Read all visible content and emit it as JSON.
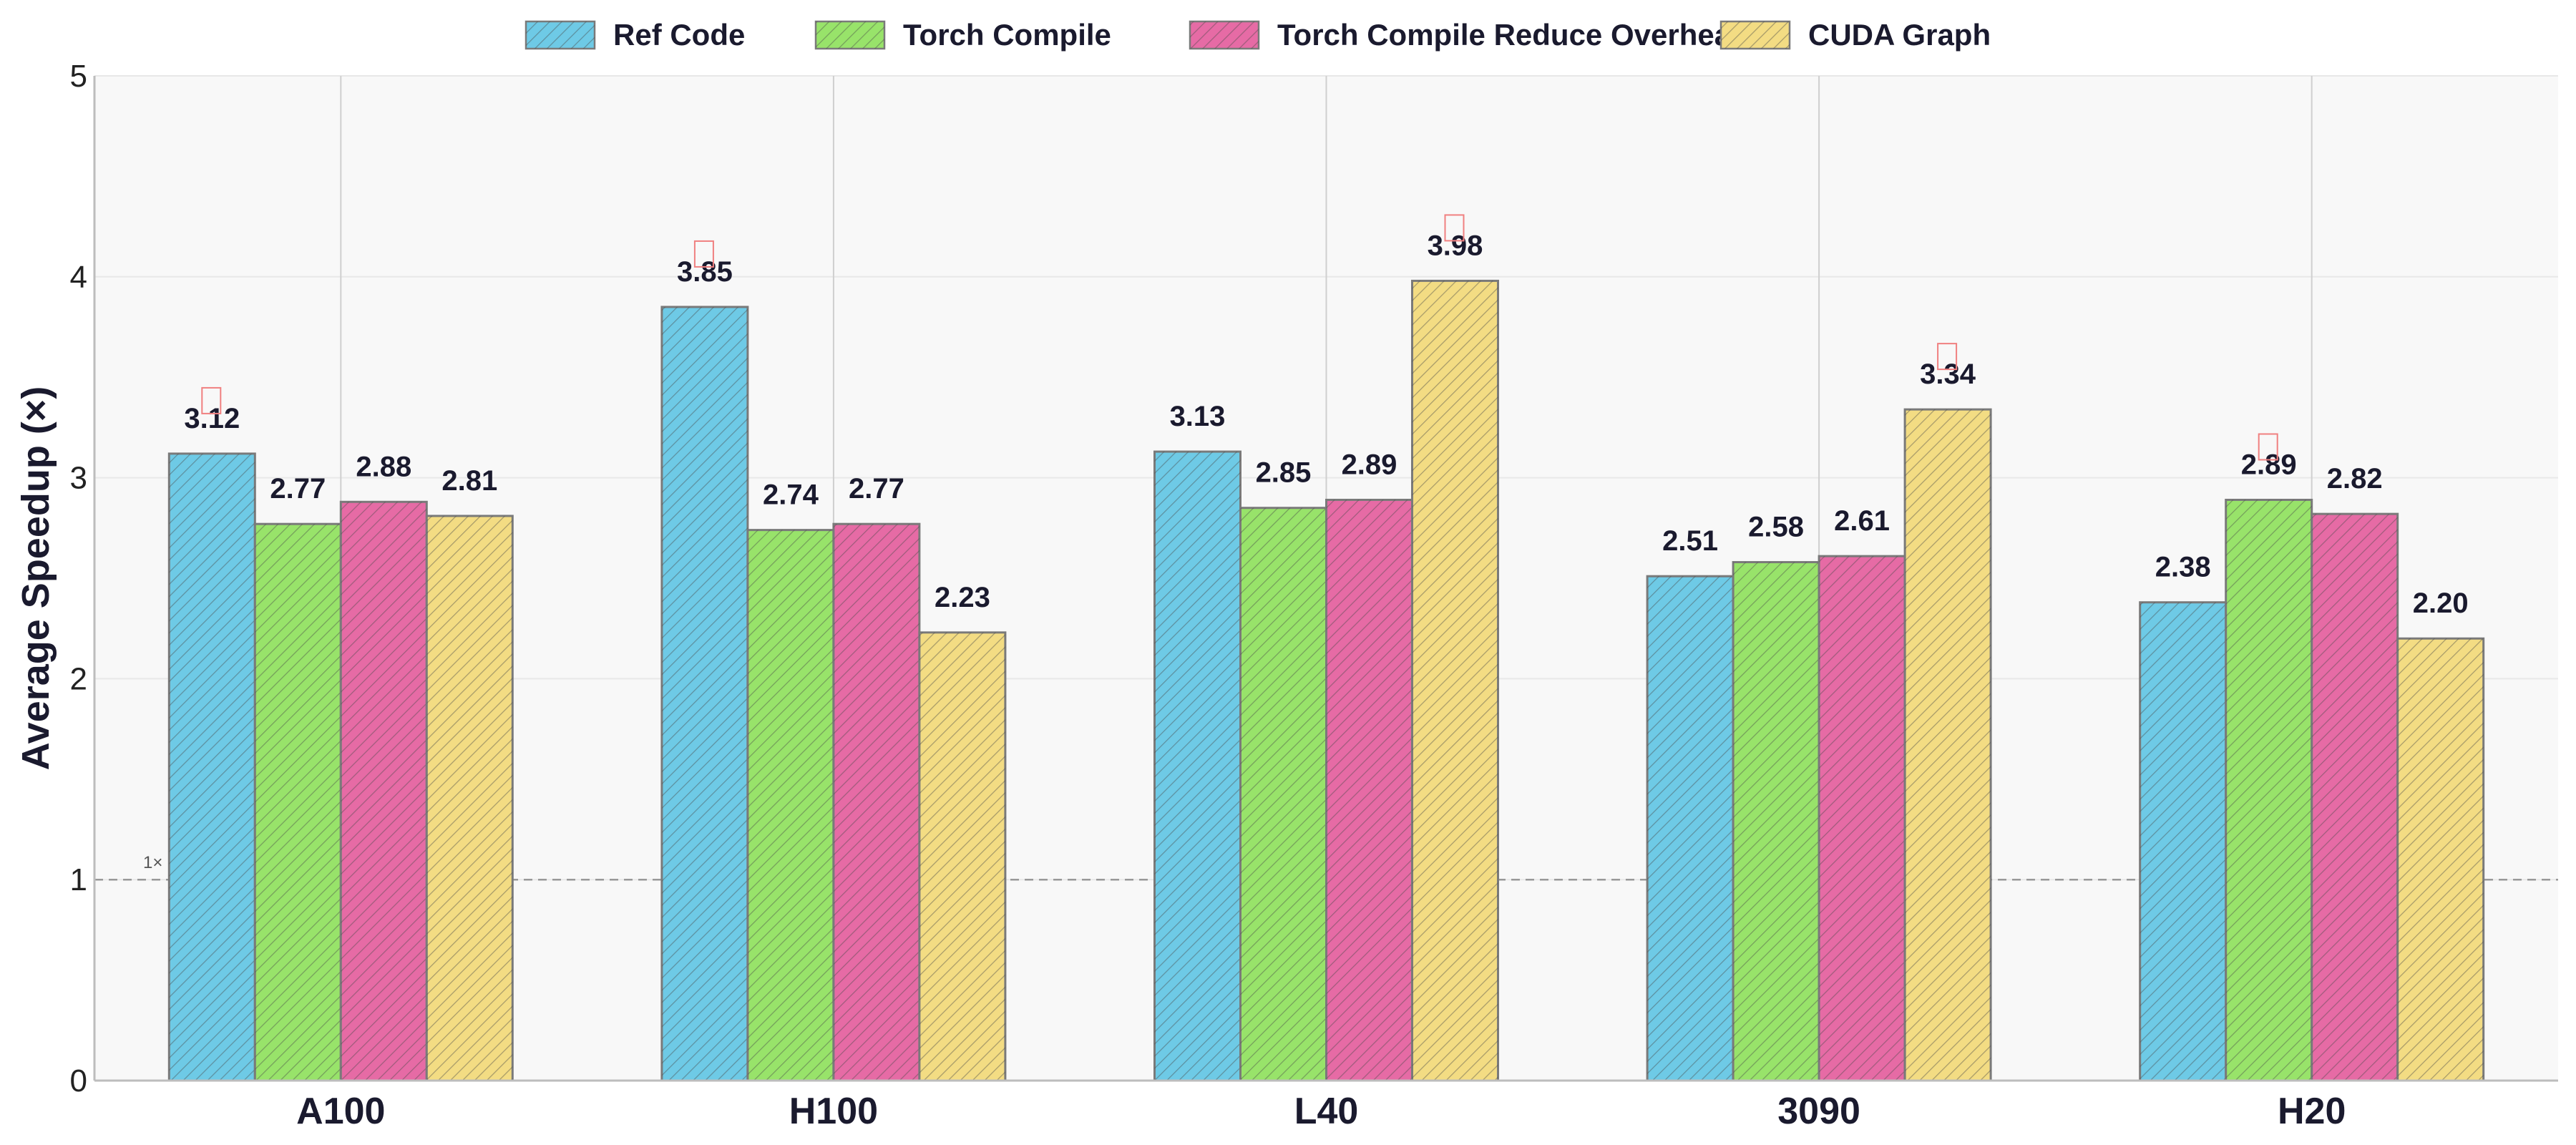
{
  "chart_data": {
    "type": "bar",
    "title": "",
    "xlabel": "",
    "ylabel": "Average Speedup (×)",
    "ylim": [
      0,
      5
    ],
    "yticks": [
      0,
      1,
      2,
      3,
      4,
      5
    ],
    "categories": [
      "A100",
      "H100",
      "L40",
      "3090",
      "H20"
    ],
    "series": [
      {
        "name": "Ref Code",
        "color": "#6ecae6",
        "values": [
          3.12,
          3.85,
          3.13,
          2.51,
          2.38
        ]
      },
      {
        "name": "Torch Compile",
        "color": "#98e36a",
        "values": [
          2.77,
          2.74,
          2.85,
          2.58,
          2.89
        ]
      },
      {
        "name": "Torch Compile Reduce Overhead",
        "color": "#e66ba5",
        "values": [
          2.88,
          2.77,
          2.89,
          2.61,
          2.82
        ]
      },
      {
        "name": "CUDA Graph",
        "color": "#f3dc83",
        "values": [
          2.81,
          2.23,
          3.98,
          3.34,
          2.2
        ]
      }
    ],
    "value_labels": [
      [
        "3.12",
        "2.77",
        "2.88",
        "2.81"
      ],
      [
        "3.85",
        "2.74",
        "2.77",
        "2.23"
      ],
      [
        "3.13",
        "2.85",
        "2.89",
        "3.98"
      ],
      [
        "2.51",
        "2.58",
        "2.61",
        "3.34"
      ],
      [
        "2.38",
        "2.89",
        "2.82",
        "2.20"
      ]
    ],
    "best_marker_series": [
      0,
      0,
      3,
      3,
      1
    ],
    "reference_line": {
      "value": 1,
      "label": "1×",
      "style": "dashed"
    },
    "grid": true,
    "legend_position": "top-center"
  }
}
